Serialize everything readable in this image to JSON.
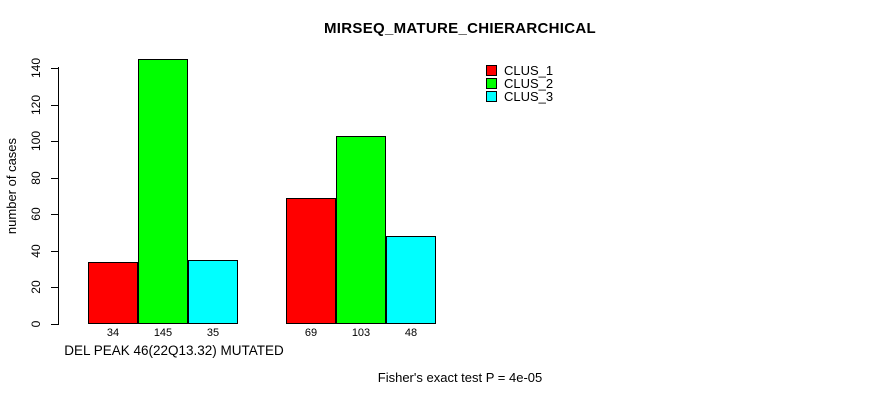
{
  "chart_data": {
    "type": "bar",
    "title": "MIRSEQ_MATURE_CHIERARCHICAL",
    "ylabel": "number of cases",
    "xlabel": "",
    "yticks": [
      0,
      20,
      40,
      60,
      80,
      100,
      120,
      140
    ],
    "ylim": [
      0,
      145
    ],
    "grid": false,
    "legend_position": "top-right",
    "group_labels": [
      "DEL PEAK 46(22Q13.32) MUTATED",
      ""
    ],
    "series": [
      {
        "name": "CLUS_1",
        "color": "#ff0000",
        "values": [
          34,
          69
        ]
      },
      {
        "name": "CLUS_2",
        "color": "#00ff00",
        "values": [
          145,
          103
        ]
      },
      {
        "name": "CLUS_3",
        "color": "#00ffff",
        "values": [
          35,
          48
        ]
      }
    ],
    "bar_value_labels": true,
    "footnote": "Fisher's exact test P = 4e-05"
  },
  "colors": {
    "background": "#ffffff",
    "axis": "#000000",
    "text": "#000000"
  }
}
